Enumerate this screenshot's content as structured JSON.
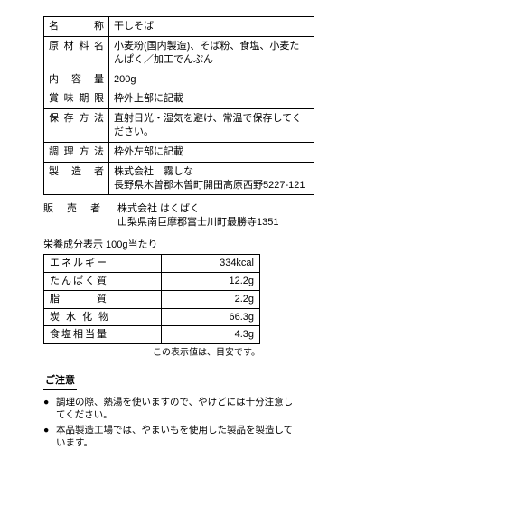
{
  "spec": {
    "rows": [
      {
        "label": "名　　称",
        "value": "干しそば"
      },
      {
        "label": "原材料名",
        "value": "小麦粉(国内製造)、そば粉、食塩、小麦たんぱく／加工でんぷん"
      },
      {
        "label": "内 容 量",
        "value": "200g"
      },
      {
        "label": "賞味期限",
        "value": "枠外上部に記載"
      },
      {
        "label": "保存方法",
        "value": "直射日光・湿気を避け、常温で保存してください。"
      },
      {
        "label": "調理方法",
        "value": "枠外左部に記載"
      },
      {
        "label": "製 造 者",
        "value": "株式会社　霧しな\n長野県木曽郡木曽町開田高原西野5227-121"
      }
    ]
  },
  "seller": {
    "label": "販 売 者",
    "value": "株式会社 はくばく\n山梨県南巨摩郡富士川町最勝寺1351"
  },
  "nutrition": {
    "title": "栄養成分表示 100g当たり",
    "rows": [
      {
        "label": "エネルギー",
        "value": "334kcal"
      },
      {
        "label": "たんぱく質",
        "value": "12.2g"
      },
      {
        "label": "脂　　　質",
        "value": "2.2g"
      },
      {
        "label": "炭 水 化 物",
        "value": "66.3g"
      },
      {
        "label": "食塩相当量",
        "value": "4.3g"
      }
    ],
    "disclaimer": "この表示値は、目安です。"
  },
  "caution": {
    "title": "ご注意",
    "items": [
      "調理の際、熱湯を使いますので、やけどには十分注意してください。",
      "本品製造工場では、やまいもを使用した製品を製造しています。"
    ]
  }
}
